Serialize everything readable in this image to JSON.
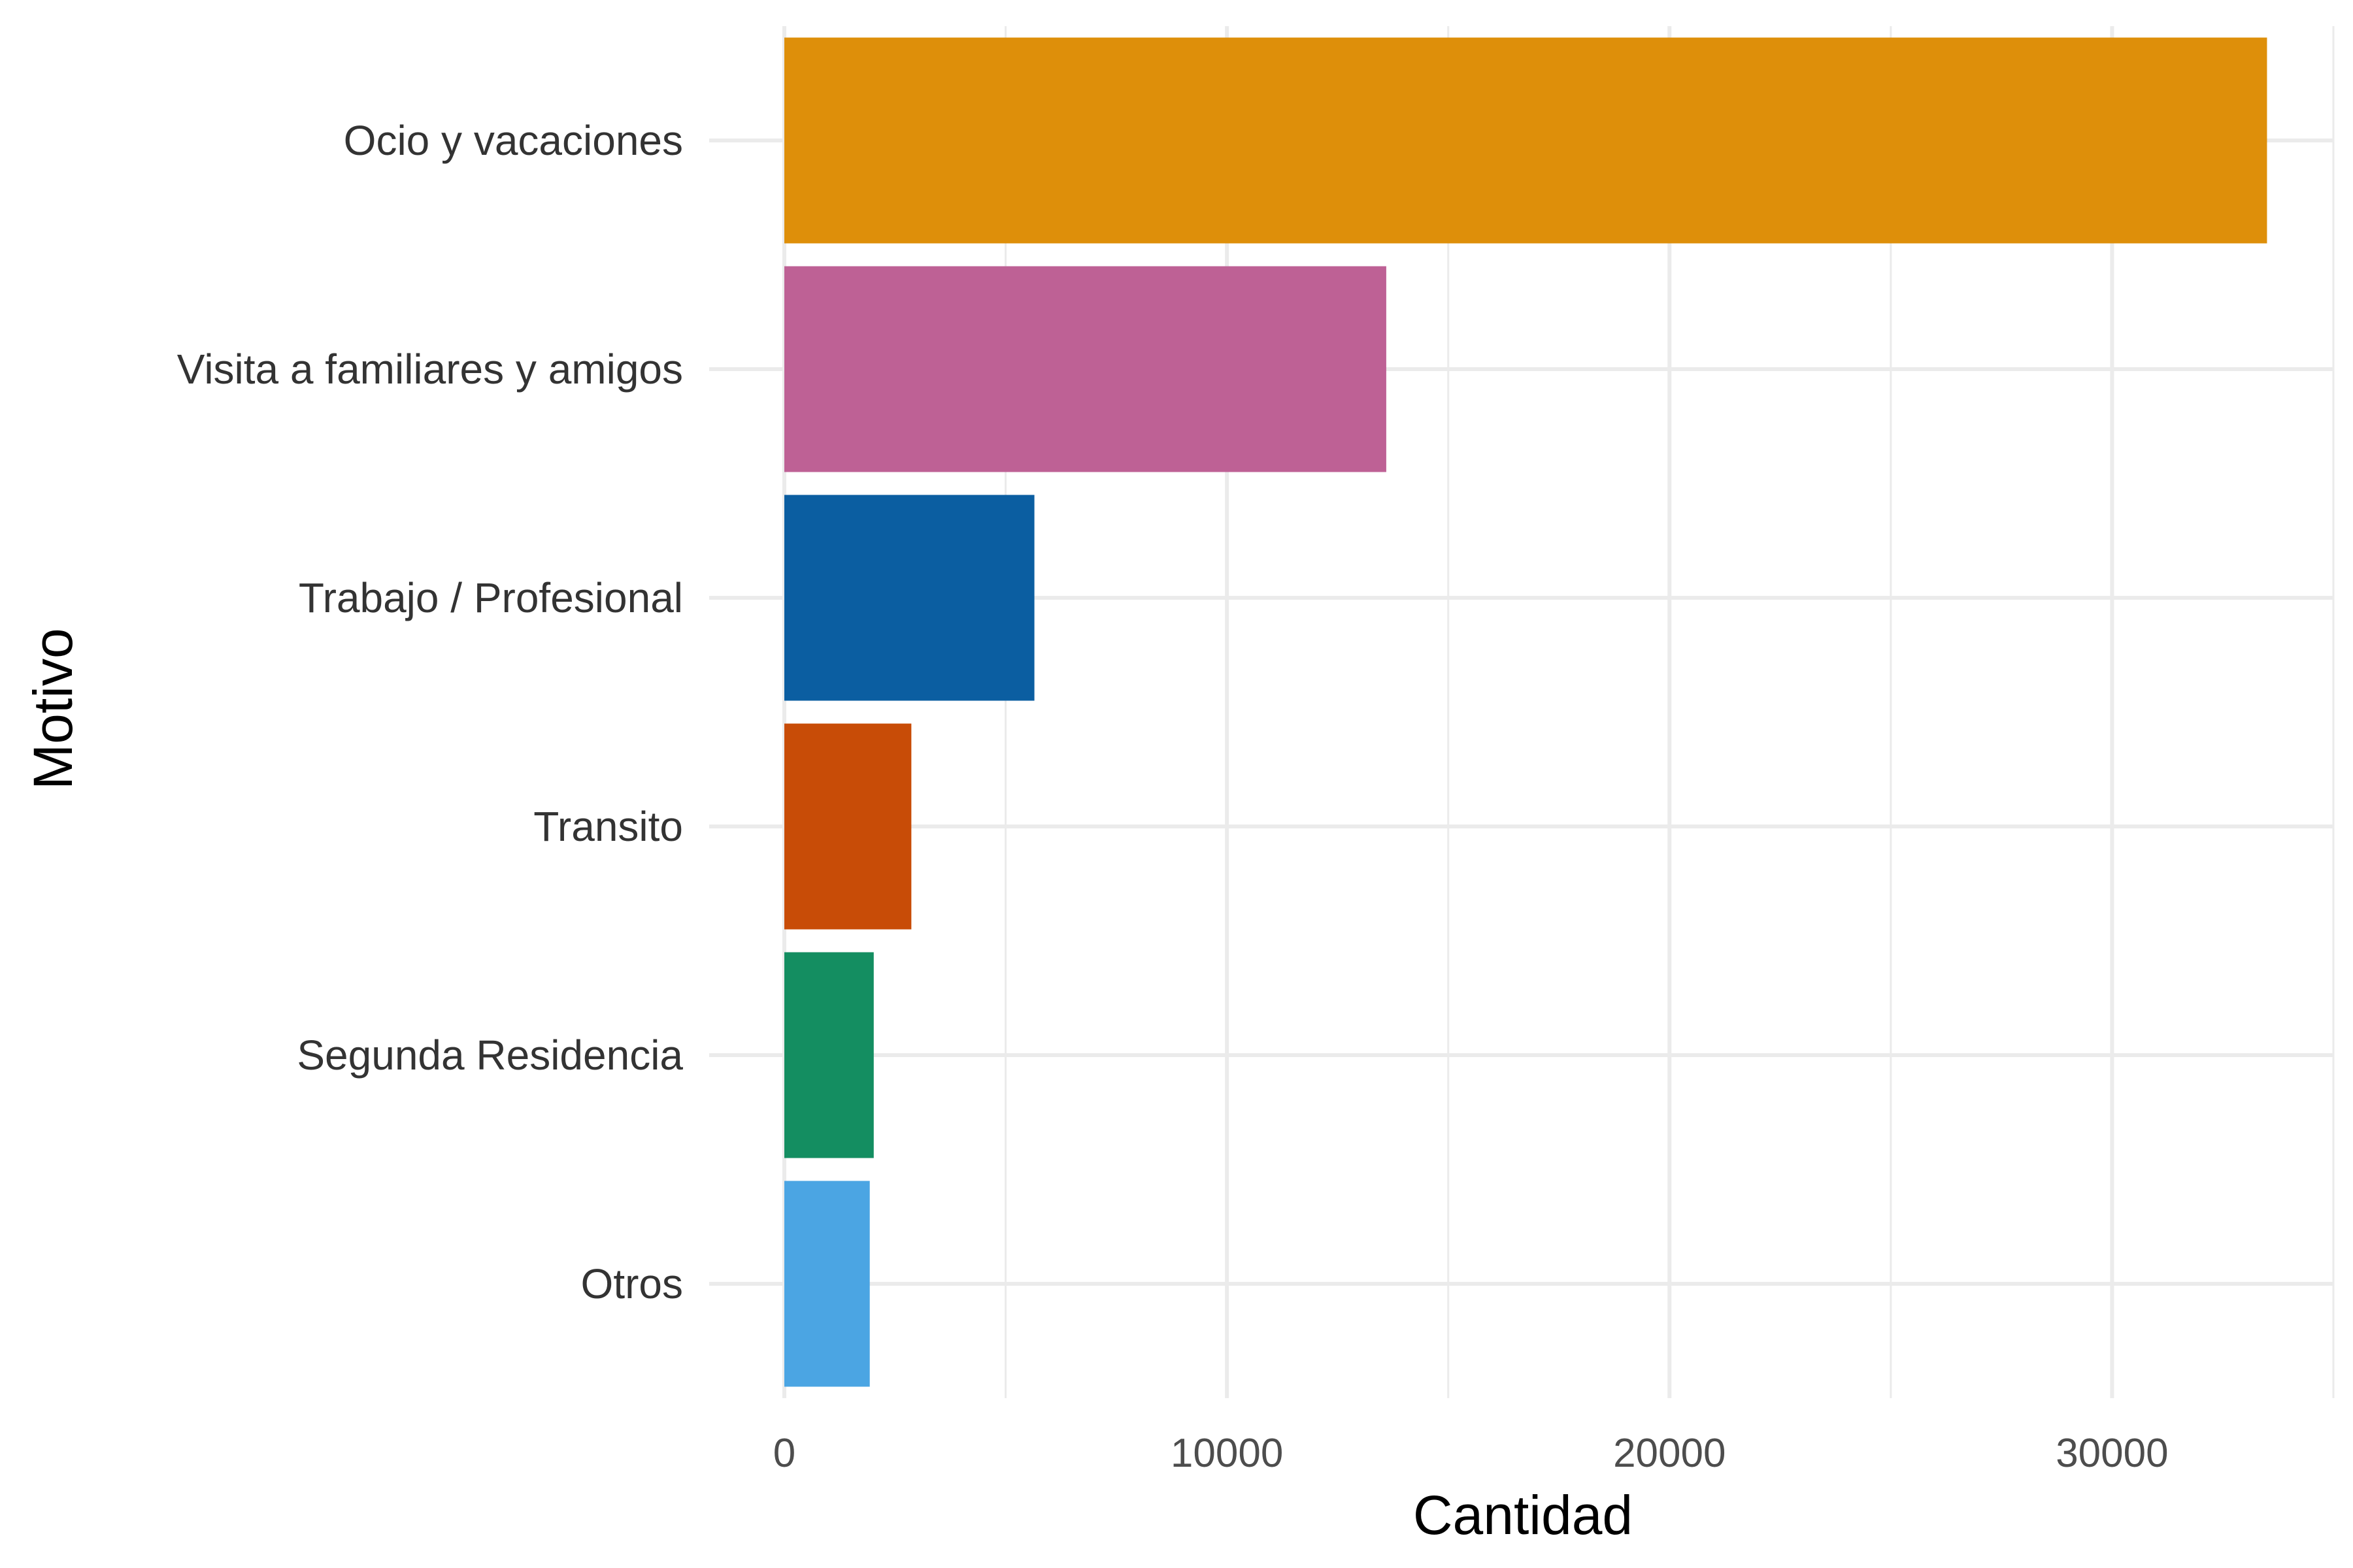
{
  "chart_data": {
    "type": "bar",
    "orientation": "horizontal",
    "title": "",
    "xlabel": "Cantidad",
    "ylabel": "Motivo",
    "categories": [
      "Ocio y vacaciones",
      "Visita a familiares y amigos",
      "Trabajo / Profesional",
      "Transito",
      "Segunda Residencia",
      "Otros"
    ],
    "values": [
      33500,
      13600,
      5650,
      2870,
      2020,
      1930
    ],
    "colors": [
      "#DE8F0A",
      "#BE6195",
      "#0B5EA1",
      "#C84C07",
      "#148E61",
      "#4BA5E3"
    ],
    "xlim": [
      0,
      35000
    ],
    "xticks": [
      0,
      10000,
      20000,
      30000
    ],
    "xtick_labels": [
      "0",
      "10000",
      "20000",
      "30000"
    ],
    "grid": true,
    "legend": "none",
    "gridline_color": "#EBEBEB"
  }
}
